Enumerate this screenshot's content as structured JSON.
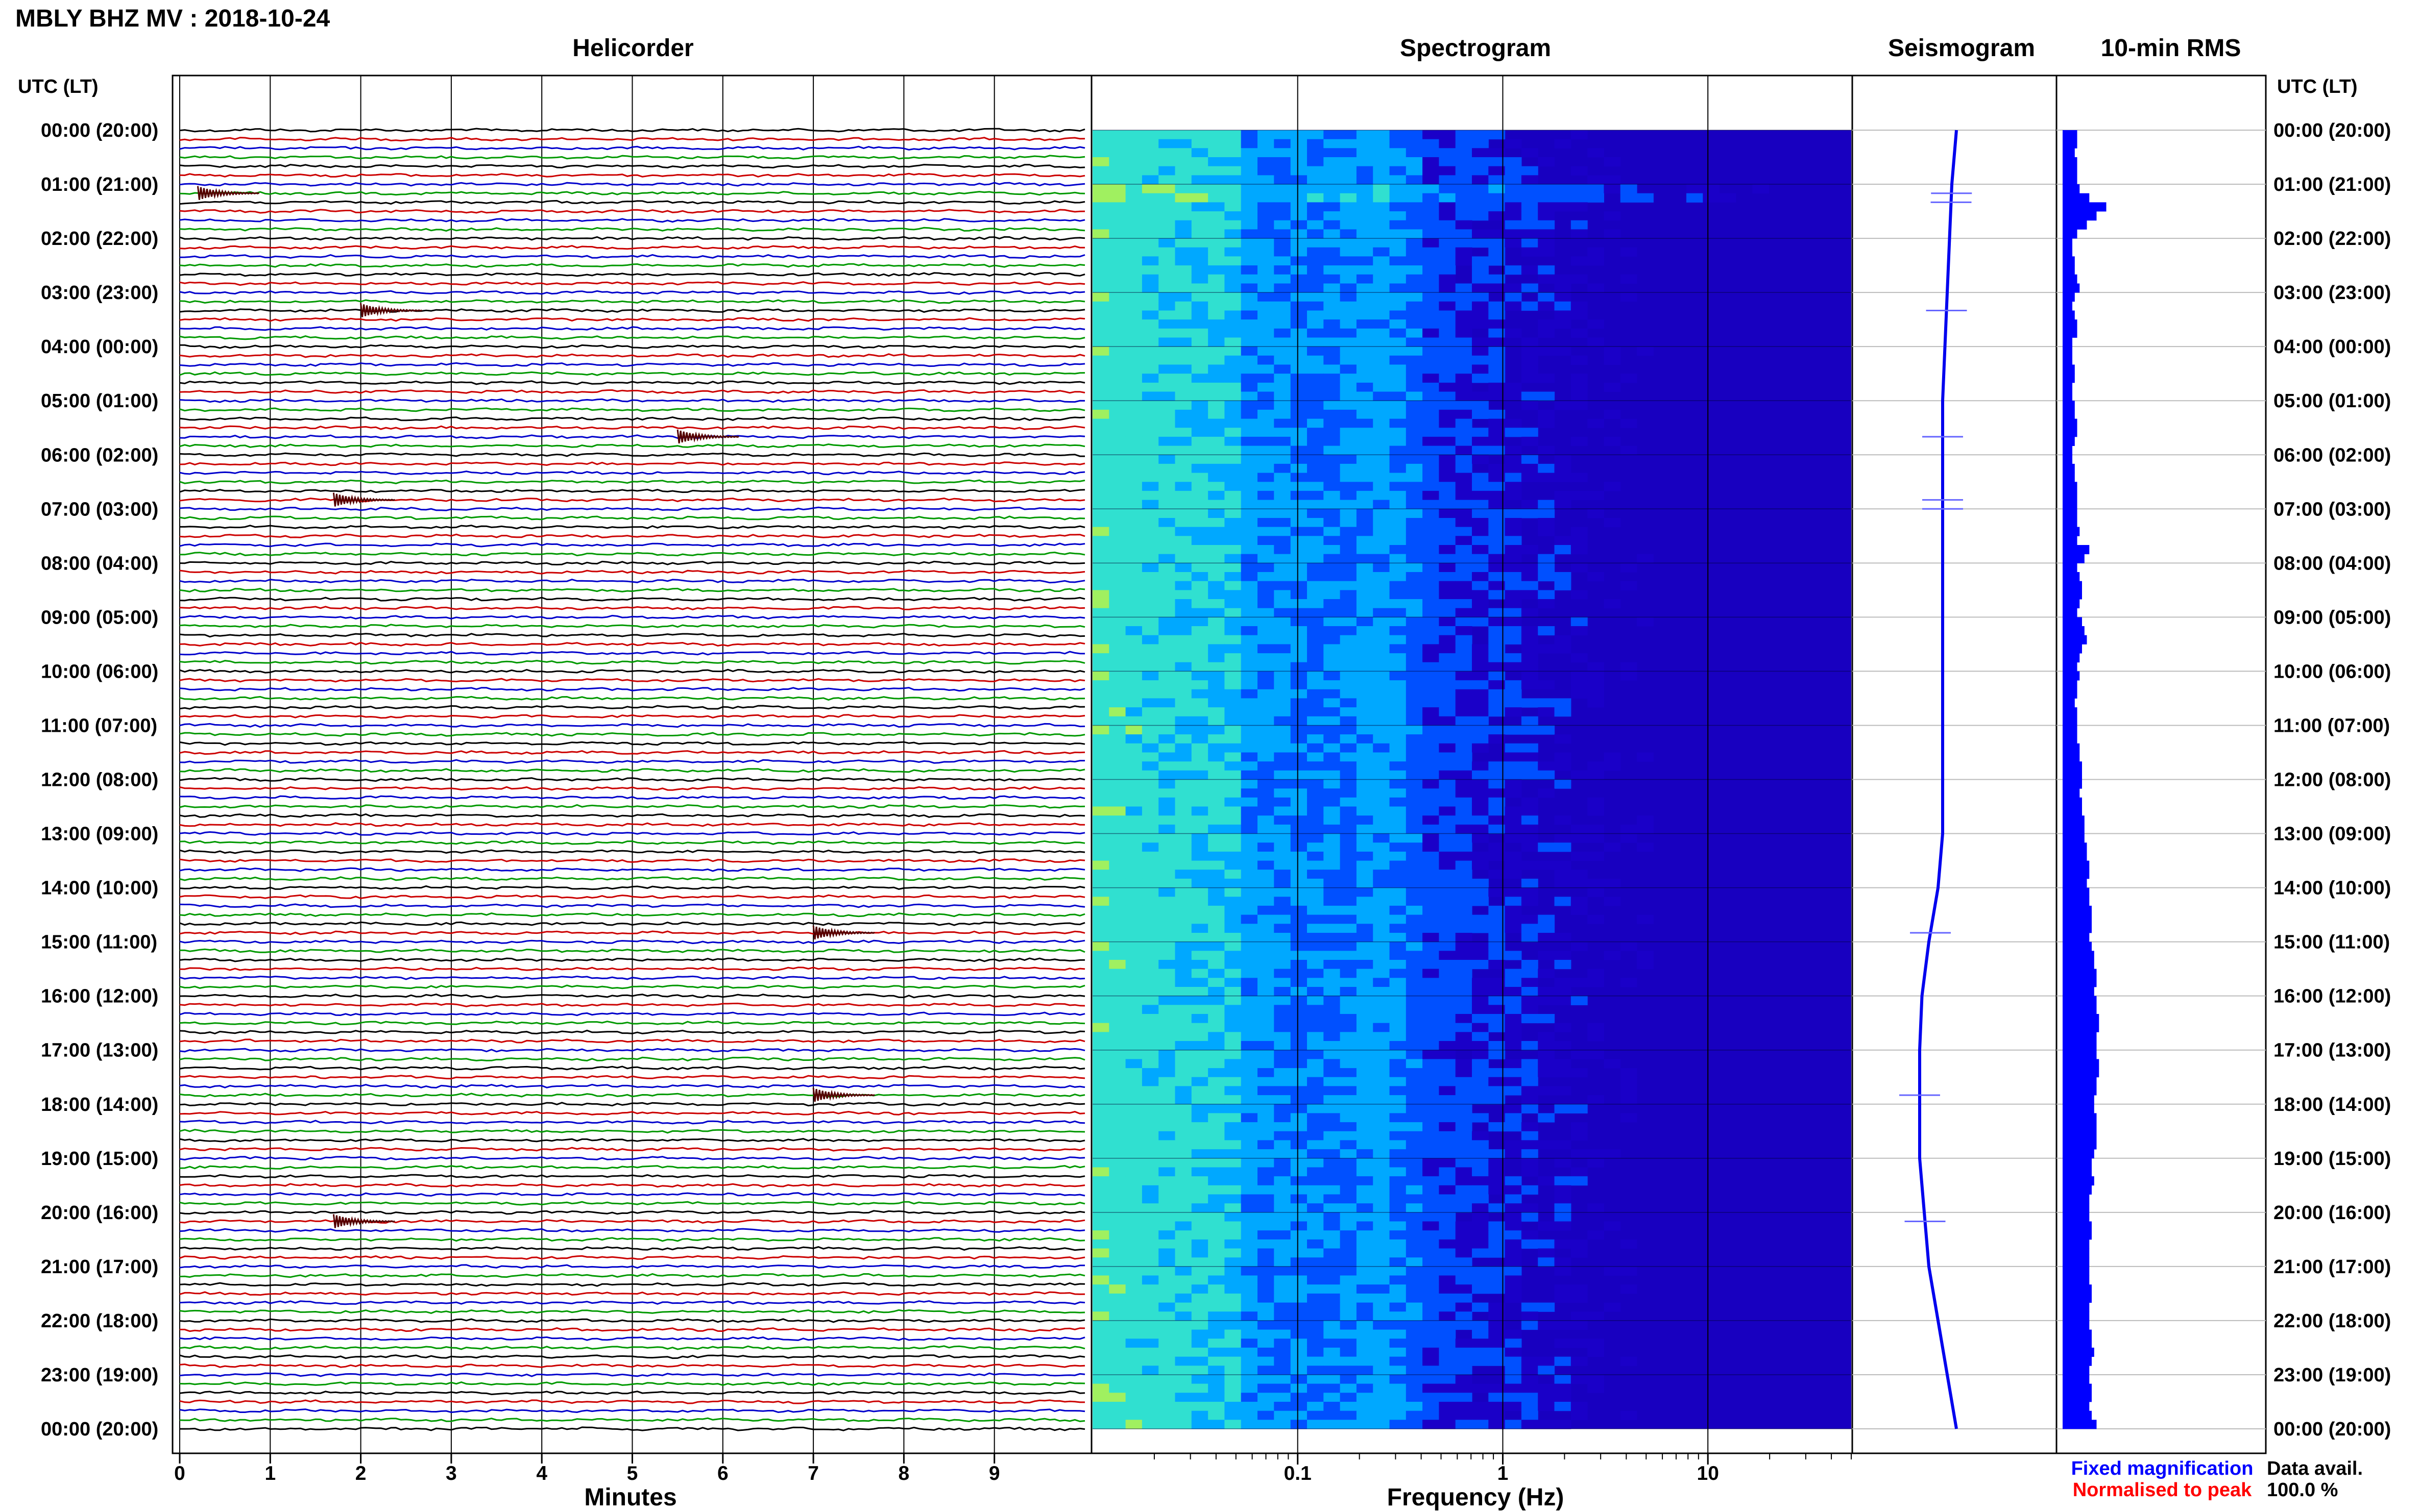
{
  "title": "MBLY BHZ MV : 2018-10-24",
  "panels": {
    "helicorder": "Helicorder",
    "spectrogram": "Spectrogram",
    "seismogram": "Seismogram",
    "rms": "10-min RMS"
  },
  "time_header_left": "UTC (LT)",
  "time_header_right": "UTC (LT)",
  "time_labels": [
    "00:00 (20:00)",
    "01:00 (21:00)",
    "02:00 (22:00)",
    "03:00 (23:00)",
    "04:00 (00:00)",
    "05:00 (01:00)",
    "06:00 (02:00)",
    "07:00 (03:00)",
    "08:00 (04:00)",
    "09:00 (05:00)",
    "10:00 (06:00)",
    "11:00 (07:00)",
    "12:00 (08:00)",
    "13:00 (09:00)",
    "14:00 (10:00)",
    "15:00 (11:00)",
    "16:00 (12:00)",
    "17:00 (13:00)",
    "18:00 (14:00)",
    "19:00 (15:00)",
    "20:00 (16:00)",
    "21:00 (17:00)",
    "22:00 (18:00)",
    "23:00 (19:00)",
    "00:00 (20:00)"
  ],
  "legend": {
    "fixed": "Fixed magnification",
    "normalised": "Normalised to peak",
    "fixed_color": "#0000ff",
    "normalised_color": "#ff0000"
  },
  "data_avail": {
    "label": "Data avail.",
    "value": "100.0 %"
  },
  "chart_data": [
    {
      "type": "line",
      "panel": "helicorder",
      "xlabel": "Minutes",
      "x_ticks": [
        "0",
        "1",
        "2",
        "3",
        "4",
        "5",
        "6",
        "7",
        "8",
        "9"
      ],
      "xlim": [
        0,
        10
      ],
      "trace_count": 144,
      "trace_colors": [
        "#000000",
        "#cc0000",
        "#0000cc",
        "#009900"
      ],
      "events": [
        {
          "time_utc": "01:10",
          "minute": 0.2
        },
        {
          "time_utc": "03:20",
          "minute": 2.0
        },
        {
          "time_utc": "05:40",
          "minute": 5.5
        },
        {
          "time_utc": "06:50",
          "minute": 1.7
        },
        {
          "time_utc": "14:50",
          "minute": 7.0
        },
        {
          "time_utc": "17:50",
          "minute": 7.0
        },
        {
          "time_utc": "20:10",
          "minute": 1.7
        }
      ]
    },
    {
      "type": "heatmap",
      "panel": "spectrogram",
      "xlabel": "Frequency (Hz)",
      "x_scale": "log",
      "xlim": [
        0.01,
        50
      ],
      "x_ticks": [
        "0.1",
        "1",
        "10"
      ],
      "colormap": [
        "#1a00c8",
        "#0050ff",
        "#00a8ff",
        "#30e0d0",
        "#a0f060",
        "#f0f020"
      ],
      "description_rows": "10-minute rows, 00:00 to 24:00 UTC"
    },
    {
      "type": "line",
      "panel": "seismogram",
      "values_note": "daily trace offset",
      "offset": [
        0,
        -0.1,
        -0.15,
        -0.2,
        -0.25,
        -0.3,
        -0.3,
        -0.3,
        -0.3,
        -0.3,
        -0.3,
        -0.3,
        -0.3,
        -0.3,
        -0.4,
        -0.6,
        -0.75,
        -0.8,
        -0.8,
        -0.8,
        -0.7,
        -0.6,
        -0.4,
        -0.2,
        0
      ]
    },
    {
      "type": "bar",
      "panel": "rms",
      "orientation": "horizontal",
      "interval_minutes": 10,
      "values": [
        0.3,
        0.3,
        0.25,
        0.3,
        0.3,
        0.3,
        0.35,
        0.55,
        0.9,
        0.7,
        0.5,
        0.3,
        0.2,
        0.2,
        0.25,
        0.25,
        0.3,
        0.35,
        0.25,
        0.2,
        0.25,
        0.3,
        0.3,
        0.2,
        0.2,
        0.2,
        0.25,
        0.25,
        0.2,
        0.2,
        0.25,
        0.25,
        0.3,
        0.3,
        0.25,
        0.2,
        0.2,
        0.25,
        0.25,
        0.3,
        0.3,
        0.3,
        0.3,
        0.3,
        0.35,
        0.3,
        0.55,
        0.45,
        0.3,
        0.35,
        0.4,
        0.4,
        0.35,
        0.3,
        0.4,
        0.45,
        0.5,
        0.4,
        0.35,
        0.3,
        0.35,
        0.3,
        0.3,
        0.25,
        0.3,
        0.3,
        0.3,
        0.3,
        0.35,
        0.35,
        0.4,
        0.4,
        0.4,
        0.35,
        0.4,
        0.4,
        0.45,
        0.45,
        0.45,
        0.5,
        0.5,
        0.55,
        0.55,
        0.5,
        0.55,
        0.55,
        0.6,
        0.6,
        0.6,
        0.55,
        0.6,
        0.65,
        0.65,
        0.7,
        0.7,
        0.65,
        0.7,
        0.7,
        0.75,
        0.75,
        0.7,
        0.7,
        0.7,
        0.75,
        0.75,
        0.7,
        0.7,
        0.65,
        0.65,
        0.7,
        0.7,
        0.7,
        0.7,
        0.65,
        0.6,
        0.6,
        0.65,
        0.6,
        0.55,
        0.55,
        0.55,
        0.6,
        0.6,
        0.55,
        0.55,
        0.55,
        0.55,
        0.55,
        0.6,
        0.6,
        0.55,
        0.55,
        0.55,
        0.6,
        0.6,
        0.65,
        0.6,
        0.55,
        0.55,
        0.6,
        0.6,
        0.55,
        0.6,
        0.7
      ]
    }
  ]
}
